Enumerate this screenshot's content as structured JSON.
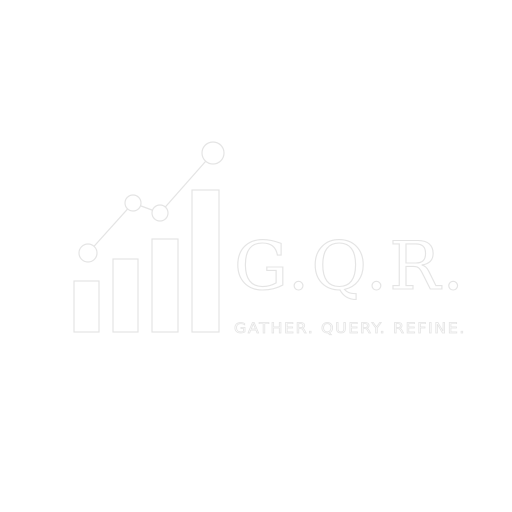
{
  "logo": {
    "icon": "bar-chart-trend-icon",
    "name": "G.Q.R.",
    "tagline": "GATHER. QUERY. REFINE.",
    "outline_color": "#e4e4e4",
    "background_color": "#ffffff"
  }
}
